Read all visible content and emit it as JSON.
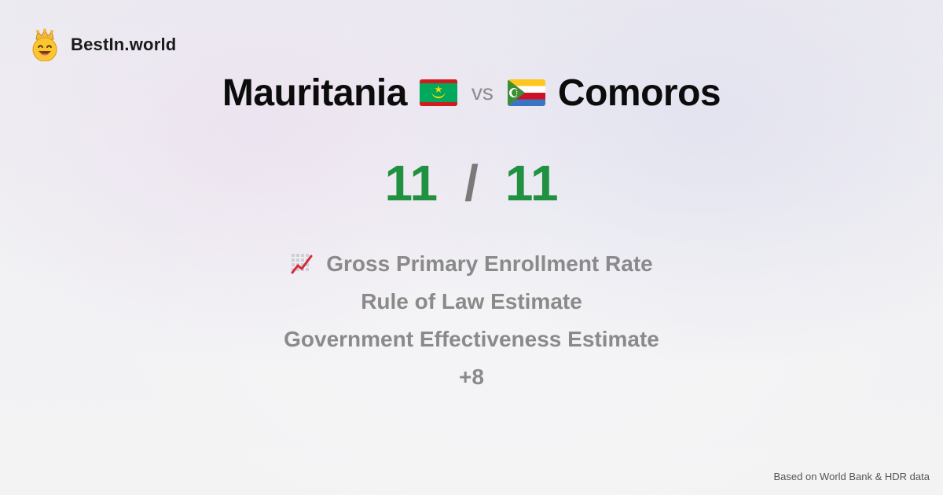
{
  "brand": {
    "name": "BestIn.world",
    "logo_icon": "crown-smiley-icon"
  },
  "comparison": {
    "left_country": "Mauritania",
    "left_flag_icon": "flag-mauritania-icon",
    "vs_label": "vs",
    "right_country": "Comoros",
    "right_flag_icon": "flag-comoros-icon"
  },
  "score": {
    "left": "11",
    "separator": "/",
    "right": "11"
  },
  "metrics": {
    "first": {
      "icon": "chart-increasing-icon",
      "label": "Gross Primary Enrollment Rate"
    },
    "second": "Rule of Law Estimate",
    "third": "Government Effectiveness Estimate",
    "more": "+8"
  },
  "footer": {
    "source": "Based on World Bank & HDR data"
  },
  "colors": {
    "score_green": "#1f9140",
    "text_dark": "#0c0c0c",
    "text_gray": "#8a8a8a",
    "background": "#f1f0f3"
  }
}
